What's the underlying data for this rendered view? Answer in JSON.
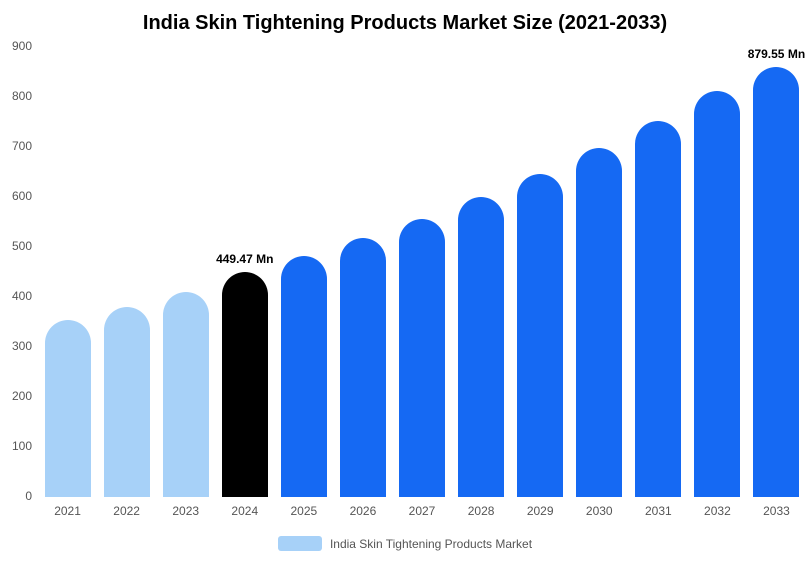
{
  "title": "India Skin Tightening Products Market Size (2021-2033)",
  "legend": {
    "label": "India Skin Tightening Products Market",
    "swatch_color": "#a7d1f8"
  },
  "chart_data": {
    "type": "bar",
    "title": "India Skin Tightening Products Market Size (2021-2033)",
    "categories": [
      "2021",
      "2022",
      "2023",
      "2024",
      "2025",
      "2026",
      "2027",
      "2028",
      "2029",
      "2030",
      "2031",
      "2032",
      "2033"
    ],
    "values": [
      355,
      381,
      410,
      449.47,
      483,
      518,
      557,
      600,
      646,
      698,
      753,
      812,
      879.55
    ],
    "bar_colors": [
      "#a7d1f8",
      "#a7d1f8",
      "#a7d1f8",
      "#000000",
      "#1569f3",
      "#1569f3",
      "#1569f3",
      "#1569f3",
      "#1569f3",
      "#1569f3",
      "#1569f3",
      "#1569f3",
      "#1569f3"
    ],
    "value_labels": {
      "2024": "449.47 Mn",
      "2033": "879.55 Mn"
    },
    "xlabel": "",
    "ylabel": "",
    "ylim": [
      0,
      900
    ],
    "yticks": [
      0,
      100,
      200,
      300,
      400,
      500,
      600,
      700,
      800,
      900
    ],
    "grid": false,
    "legend_position": "bottom",
    "unit": "Mn"
  }
}
